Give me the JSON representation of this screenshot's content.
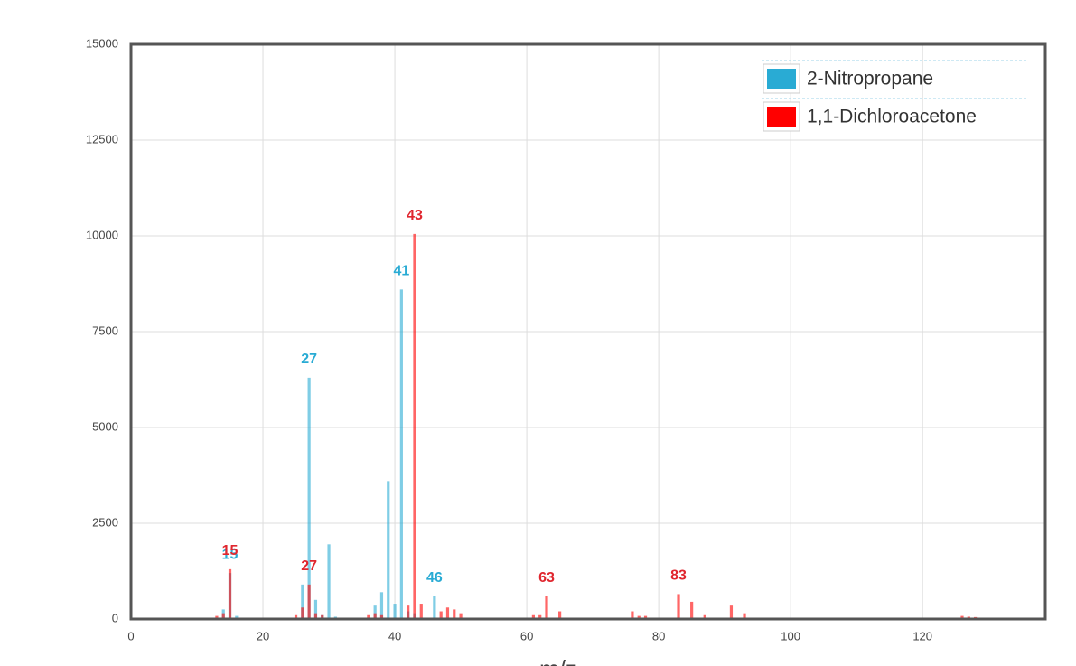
{
  "chart_data": {
    "type": "bar",
    "x_label": "m/z",
    "xlim": [
      0,
      138.6
    ],
    "xticks": [
      0,
      20,
      40,
      60,
      80,
      100,
      120
    ],
    "ylim": [
      0,
      15000
    ],
    "yticks": [
      0,
      2500,
      5000,
      7500,
      10000,
      12500,
      15000
    ],
    "grid": true,
    "legend": "top-right",
    "series": [
      {
        "name": "2-Nitropropane",
        "color": "#29abd4",
        "x": [
          14,
          15,
          16,
          26,
          27,
          28,
          29,
          30,
          31,
          37,
          38,
          39,
          40,
          41,
          42,
          43,
          46
        ],
        "values": [
          250,
          1200,
          80,
          900,
          6300,
          500,
          100,
          1950,
          60,
          350,
          700,
          3600,
          400,
          8600,
          200,
          150,
          600
        ]
      },
      {
        "name": "1,1-Dichloroacetone",
        "color": "#ff0000",
        "x": [
          13,
          14,
          15,
          25,
          26,
          27,
          28,
          29,
          36,
          37,
          38,
          42,
          43,
          44,
          47,
          48,
          49,
          50,
          61,
          62,
          63,
          65,
          76,
          77,
          78,
          83,
          85,
          87,
          91,
          93,
          126,
          127,
          128
        ],
        "values": [
          80,
          150,
          1300,
          100,
          300,
          900,
          150,
          100,
          100,
          150,
          100,
          350,
          10050,
          400,
          200,
          300,
          250,
          150,
          100,
          100,
          600,
          200,
          200,
          80,
          80,
          650,
          450,
          100,
          350,
          150,
          80,
          60,
          50
        ]
      }
    ]
  }
}
